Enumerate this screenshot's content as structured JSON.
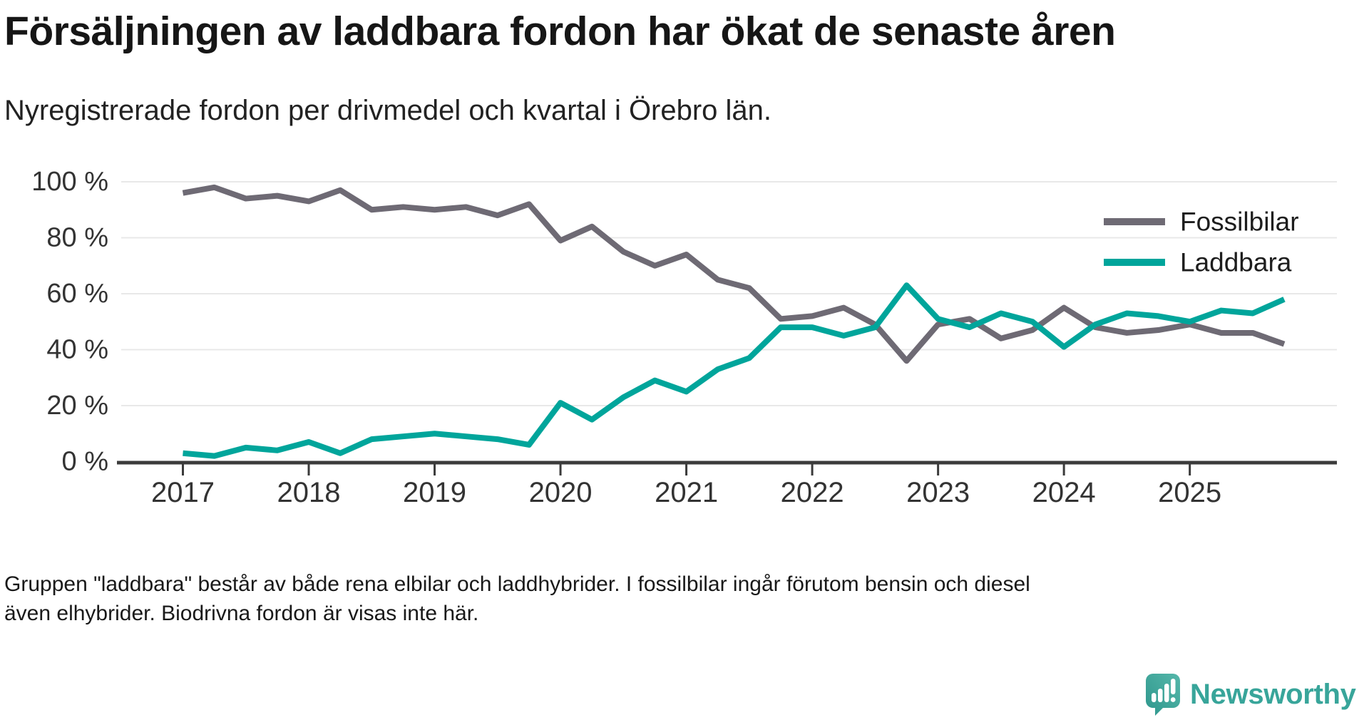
{
  "title": "Försäljningen av laddbara fordon har ökat de senaste åren",
  "subtitle": "Nyregistrerade fordon per drivmedel och kvartal i Örebro län.",
  "footnote": "Gruppen \"laddbara\" består av både rena elbilar och laddhybrider. I fossilbilar ingår förutom bensin och diesel även elhybrider. Biodrivna fordon är visas inte här.",
  "branding": {
    "logo_text": "Newsworthy",
    "logo_icon": "newsworthy-speech-bubble-bar-chart-icon",
    "logo_color": "#38a59a"
  },
  "colors": {
    "fossilbilar": "#6e6a74",
    "laddbara": "#00a59b",
    "grid": "#e8e8e8",
    "axis": "#3b3b3b",
    "axis_text": "#333333",
    "legend_text": "#1d1d1d"
  },
  "chart_data": {
    "type": "line",
    "title": "Försäljningen av laddbara fordon har ökat de senaste åren",
    "subtitle": "Nyregistrerade fordon per drivmedel och kvartal i Örebro län.",
    "x_unit": "quarter",
    "x_quarter_labels": [
      "2017 Q1",
      "2017 Q2",
      "2017 Q3",
      "2017 Q4",
      "2018 Q1",
      "2018 Q2",
      "2018 Q3",
      "2018 Q4",
      "2019 Q1",
      "2019 Q2",
      "2019 Q3",
      "2019 Q4",
      "2020 Q1",
      "2020 Q2",
      "2020 Q3",
      "2020 Q4",
      "2021 Q1",
      "2021 Q2",
      "2021 Q3",
      "2021 Q4",
      "2022 Q1",
      "2022 Q2",
      "2022 Q3",
      "2022 Q4",
      "2023 Q1",
      "2023 Q2",
      "2023 Q3",
      "2023 Q4",
      "2024 Q1",
      "2024 Q2",
      "2024 Q3",
      "2024 Q4",
      "2025 Q1",
      "2025 Q2",
      "2025 Q3",
      "2025 Q4"
    ],
    "x_tick_labels": [
      "2017",
      "2018",
      "2019",
      "2020",
      "2021",
      "2022",
      "2023",
      "2024",
      "2025"
    ],
    "y_ticks": [
      0,
      20,
      40,
      60,
      80,
      100
    ],
    "y_tick_labels": [
      "0 %",
      "20 %",
      "40 %",
      "60 %",
      "80 %",
      "100 %"
    ],
    "ylim": [
      0,
      100
    ],
    "grid": "horizontal",
    "legend_position": "upper-right",
    "series": [
      {
        "name": "Fossilbilar",
        "color": "#6e6a74",
        "values": [
          96,
          98,
          94,
          95,
          93,
          97,
          90,
          91,
          90,
          91,
          88,
          92,
          79,
          84,
          75,
          70,
          74,
          65,
          62,
          51,
          52,
          55,
          49,
          36,
          49,
          51,
          44,
          47,
          55,
          48,
          46,
          47,
          49,
          46,
          46,
          42
        ]
      },
      {
        "name": "Laddbara",
        "color": "#00a59b",
        "values": [
          3,
          2,
          5,
          4,
          7,
          3,
          8,
          9,
          10,
          9,
          8,
          6,
          21,
          15,
          23,
          29,
          25,
          33,
          37,
          48,
          48,
          45,
          48,
          63,
          51,
          48,
          53,
          50,
          41,
          49,
          53,
          52,
          50,
          54,
          53,
          58
        ]
      }
    ]
  }
}
